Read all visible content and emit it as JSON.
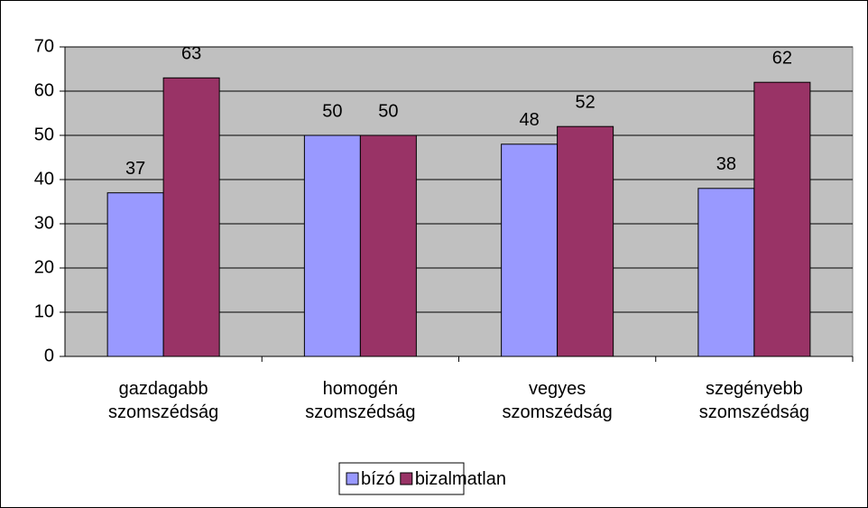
{
  "chart_data": {
    "type": "bar",
    "categories": [
      "gazdagabb szomszédság",
      "homogén szomszédság",
      "vegyes szomszédság",
      "szegényebb szomszédság"
    ],
    "series": [
      {
        "name": "bízó",
        "color": "#9999ff",
        "values": [
          37,
          50,
          48,
          38
        ]
      },
      {
        "name": "bizalmatlan",
        "color": "#993366",
        "values": [
          63,
          50,
          52,
          62
        ]
      }
    ],
    "ylim": [
      0,
      70
    ],
    "yticks": [
      0,
      10,
      20,
      30,
      40,
      50,
      60,
      70
    ],
    "grid": true,
    "legend": "bottom"
  }
}
